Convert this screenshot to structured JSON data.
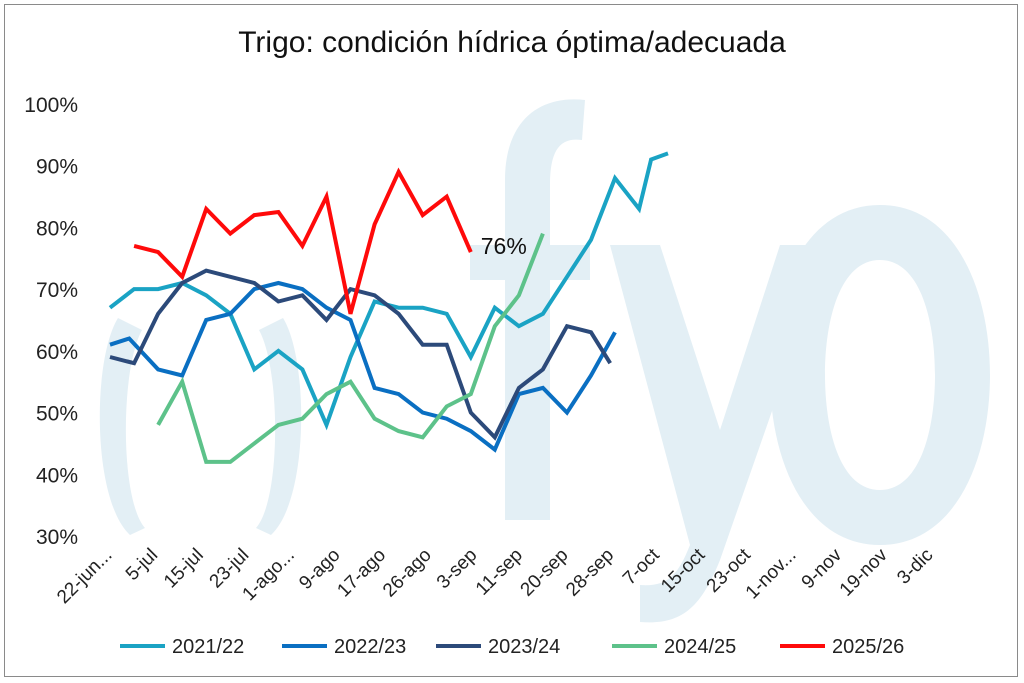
{
  "chart_data": {
    "type": "line",
    "title": "Trigo: condición hídrica óptima/adecuada",
    "xlabel": "",
    "ylabel": "",
    "ylim": [
      30,
      100
    ],
    "yticks": [
      "30%",
      "40%",
      "50%",
      "60%",
      "70%",
      "80%",
      "90%",
      "100%"
    ],
    "ytick_values": [
      30,
      40,
      50,
      60,
      70,
      80,
      90,
      100
    ],
    "categories": [
      "22-jun...",
      "5-jul",
      "15-jul",
      "23-jul",
      "1-ago...",
      "9-ago",
      "17-ago",
      "26-ago",
      "3-sep",
      "11-sep",
      "20-sep",
      "28-sep",
      "7-oct",
      "15-oct",
      "23-oct",
      "1-nov...",
      "9-nov",
      "19-nov",
      "3-dic"
    ],
    "watermark": "()fyo",
    "annotation": {
      "text": "76%",
      "series": "2025/26"
    },
    "series": [
      {
        "name": "2021/22",
        "color": "#1aa3c4",
        "points": [
          [
            0.0,
            67
          ],
          [
            0.5,
            70
          ],
          [
            1.0,
            70
          ],
          [
            1.5,
            71
          ],
          [
            2.0,
            69
          ],
          [
            2.5,
            66
          ],
          [
            3.0,
            57
          ],
          [
            3.5,
            60
          ],
          [
            4.0,
            57
          ],
          [
            4.5,
            48
          ],
          [
            5.0,
            59
          ],
          [
            5.5,
            68
          ],
          [
            6.0,
            67
          ],
          [
            6.5,
            67
          ],
          [
            7.0,
            66
          ],
          [
            7.5,
            59
          ],
          [
            8.0,
            67
          ],
          [
            8.5,
            64
          ],
          [
            9.0,
            66
          ],
          [
            9.5,
            72
          ],
          [
            10.0,
            78
          ],
          [
            10.5,
            88
          ],
          [
            11.0,
            83
          ],
          [
            11.25,
            91
          ],
          [
            11.6,
            92
          ]
        ]
      },
      {
        "name": "2022/23",
        "color": "#0a6fc2",
        "points": [
          [
            0.0,
            61
          ],
          [
            0.4,
            62
          ],
          [
            1.0,
            57
          ],
          [
            1.5,
            56
          ],
          [
            2.0,
            65
          ],
          [
            2.5,
            66
          ],
          [
            3.0,
            70
          ],
          [
            3.5,
            71
          ],
          [
            4.0,
            70
          ],
          [
            4.5,
            67
          ],
          [
            5.0,
            65
          ],
          [
            5.5,
            54
          ],
          [
            6.0,
            53
          ],
          [
            6.5,
            50
          ],
          [
            7.0,
            49
          ],
          [
            7.5,
            47
          ],
          [
            8.0,
            44
          ],
          [
            8.5,
            53
          ],
          [
            9.0,
            54
          ],
          [
            9.5,
            50
          ],
          [
            10.0,
            56
          ],
          [
            10.5,
            63
          ]
        ]
      },
      {
        "name": "2023/24",
        "color": "#2c4a7a",
        "points": [
          [
            0.0,
            59
          ],
          [
            0.5,
            58
          ],
          [
            1.0,
            66
          ],
          [
            1.5,
            71
          ],
          [
            2.0,
            73
          ],
          [
            2.5,
            72
          ],
          [
            3.0,
            71
          ],
          [
            3.5,
            68
          ],
          [
            4.0,
            69
          ],
          [
            4.5,
            65
          ],
          [
            5.0,
            70
          ],
          [
            5.5,
            69
          ],
          [
            6.0,
            66
          ],
          [
            6.5,
            61
          ],
          [
            7.0,
            61
          ],
          [
            7.5,
            50
          ],
          [
            8.0,
            46
          ],
          [
            8.5,
            54
          ],
          [
            9.0,
            57
          ],
          [
            9.5,
            64
          ],
          [
            10.0,
            63
          ],
          [
            10.4,
            58
          ]
        ]
      },
      {
        "name": "2024/25",
        "color": "#5dc28a",
        "points": [
          [
            1.0,
            48
          ],
          [
            1.5,
            55
          ],
          [
            2.0,
            42
          ],
          [
            2.5,
            42
          ],
          [
            3.0,
            45
          ],
          [
            3.5,
            48
          ],
          [
            4.0,
            49
          ],
          [
            4.5,
            53
          ],
          [
            5.0,
            55
          ],
          [
            5.5,
            49
          ],
          [
            6.0,
            47
          ],
          [
            6.5,
            46
          ],
          [
            7.0,
            51
          ],
          [
            7.5,
            53
          ],
          [
            8.0,
            64
          ],
          [
            8.5,
            69
          ],
          [
            9.0,
            79
          ]
        ]
      },
      {
        "name": "2025/26",
        "color": "#ff0a0a",
        "points": [
          [
            0.5,
            77
          ],
          [
            1.0,
            76
          ],
          [
            1.5,
            72
          ],
          [
            2.0,
            83
          ],
          [
            2.5,
            79
          ],
          [
            3.0,
            82
          ],
          [
            3.5,
            82.5
          ],
          [
            4.0,
            77
          ],
          [
            4.5,
            85
          ],
          [
            5.0,
            66
          ],
          [
            5.5,
            80.5
          ],
          [
            6.0,
            89
          ],
          [
            6.5,
            82
          ],
          [
            7.0,
            85
          ],
          [
            7.5,
            76
          ]
        ]
      }
    ]
  }
}
